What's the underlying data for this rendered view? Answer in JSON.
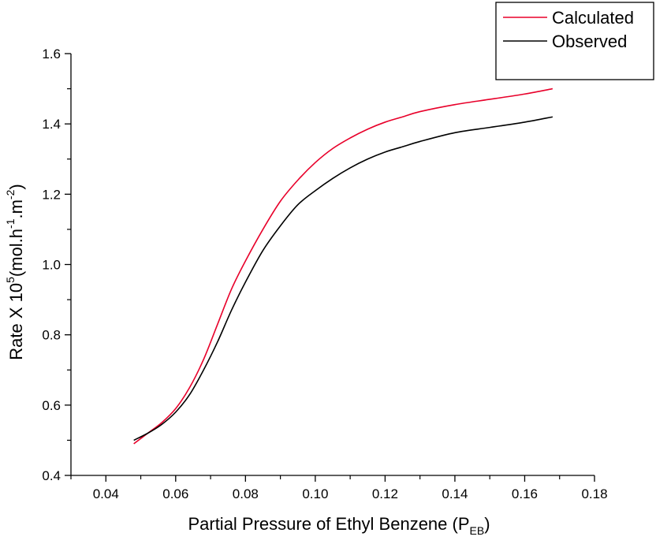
{
  "chart_data": {
    "type": "line",
    "title": "",
    "xlabel": {
      "main": "Partial Pressure of Ethyl Benzene (P",
      "sub": "EB",
      "close": ")"
    },
    "ylabel": {
      "prefix": "Rate X 10",
      "exp": "5",
      "unit": "(mol.h",
      "exp2": "-1",
      "unit2": ".m",
      "exp3": "-2",
      "close": ")"
    },
    "xlim": [
      0.03,
      0.18
    ],
    "ylim": [
      0.4,
      1.6
    ],
    "xticks": [
      0.04,
      0.06,
      0.08,
      0.1,
      0.12,
      0.14,
      0.16,
      0.18
    ],
    "xtick_labels": [
      "0.04",
      "0.06",
      "0.08",
      "0.10",
      "0.12",
      "0.14",
      "0.16",
      "0.18"
    ],
    "yticks": [
      0.4,
      0.6,
      0.8,
      1.0,
      1.2,
      1.4,
      1.6
    ],
    "ytick_labels": [
      "0.4",
      "0.6",
      "0.8",
      "1.0",
      "1.2",
      "1.4",
      "1.6"
    ],
    "grid": false,
    "legend_position": "top-right",
    "series": [
      {
        "name": "Calculated",
        "color": "#e8002a",
        "x": [
          0.048,
          0.052,
          0.056,
          0.06,
          0.064,
          0.068,
          0.072,
          0.076,
          0.08,
          0.085,
          0.09,
          0.095,
          0.1,
          0.105,
          0.11,
          0.115,
          0.12,
          0.125,
          0.13,
          0.14,
          0.15,
          0.16,
          0.168
        ],
        "y": [
          0.49,
          0.52,
          0.55,
          0.59,
          0.65,
          0.73,
          0.83,
          0.93,
          1.01,
          1.1,
          1.18,
          1.24,
          1.29,
          1.33,
          1.36,
          1.385,
          1.405,
          1.42,
          1.435,
          1.455,
          1.47,
          1.485,
          1.5
        ]
      },
      {
        "name": "Observed",
        "color": "#000000",
        "x": [
          0.048,
          0.052,
          0.056,
          0.06,
          0.064,
          0.068,
          0.072,
          0.076,
          0.08,
          0.085,
          0.09,
          0.095,
          0.1,
          0.105,
          0.11,
          0.115,
          0.12,
          0.125,
          0.13,
          0.14,
          0.15,
          0.16,
          0.168
        ],
        "y": [
          0.5,
          0.52,
          0.545,
          0.58,
          0.63,
          0.7,
          0.78,
          0.87,
          0.95,
          1.04,
          1.11,
          1.17,
          1.21,
          1.245,
          1.275,
          1.3,
          1.32,
          1.335,
          1.35,
          1.375,
          1.39,
          1.405,
          1.42
        ]
      }
    ]
  }
}
